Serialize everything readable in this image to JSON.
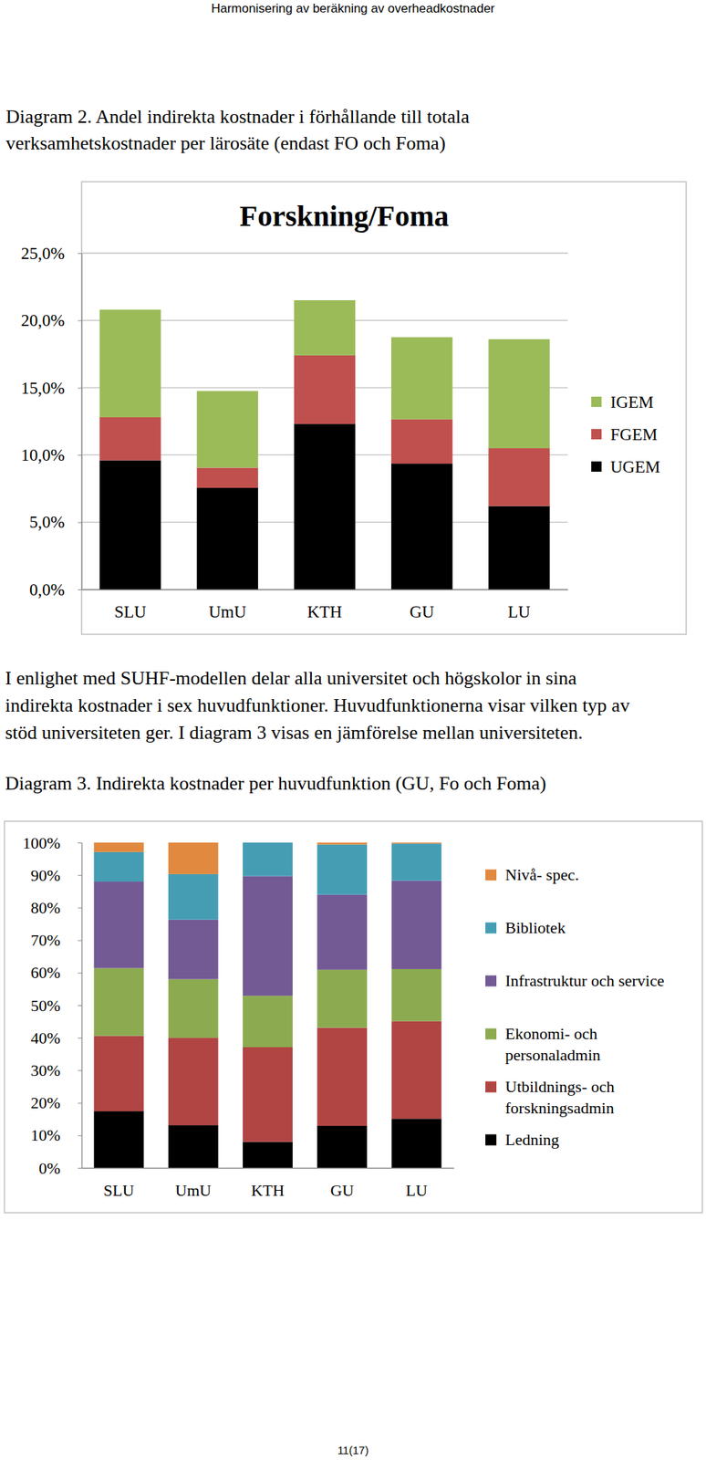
{
  "header": "Harmonisering av beräkning av overheadkostnader",
  "diagram2_caption": [
    "Diagram 2. Andel indirekta kostnader i förhållande till totala",
    "verksamhetskostnader per lärosäte (endast FO och Foma)"
  ],
  "paragraph": [
    "I enlighet med SUHF-modellen delar alla universitet och högskolor in sina",
    "indirekta kostnader i sex huvudfunktioner. Huvudfunktionerna visar vilken typ av",
    "stöd universiteten ger. I diagram 3 visas en jämförelse mellan universiteten."
  ],
  "diagram3_caption": "Diagram 3. Indirekta kostnader per huvudfunktion (GU, Fo och Foma)",
  "page_number": "11(17)",
  "chart_data": [
    {
      "type": "bar",
      "title": "Forskning/Foma",
      "stacked": true,
      "grid": true,
      "legend": "right",
      "categories": [
        "SLU",
        "UmU",
        "KTH",
        "GU",
        "LU"
      ],
      "series": [
        {
          "name": "UGEM",
          "color": "#000000",
          "values": [
            9.6,
            7.55,
            12.3,
            9.35,
            6.2
          ]
        },
        {
          "name": "FGEM",
          "color": "#c0504d",
          "values": [
            3.2,
            1.5,
            5.1,
            3.3,
            4.3
          ]
        },
        {
          "name": "IGEM",
          "color": "#9bbb59",
          "values": [
            8.0,
            5.7,
            4.1,
            6.1,
            8.1
          ]
        }
      ],
      "ylim": [
        0,
        25
      ],
      "yticks": [
        {
          "value": 0,
          "label": "0,0%"
        },
        {
          "value": 5,
          "label": "5,0%"
        },
        {
          "value": 10,
          "label": "10,0%"
        },
        {
          "value": 15,
          "label": "15,0%"
        },
        {
          "value": 20,
          "label": "20,0%"
        },
        {
          "value": 25,
          "label": "25,0%"
        }
      ]
    },
    {
      "type": "bar",
      "stacked": true,
      "grid": false,
      "legend": "right",
      "categories": [
        "SLU",
        "UmU",
        "KTH",
        "GU",
        "LU"
      ],
      "series": [
        {
          "name": "Ledning",
          "color": "#000000",
          "values": [
            17.4,
            13.1,
            8.0,
            12.9,
            15.1
          ]
        },
        {
          "name": "Utbildnings- och forskningsadmin",
          "color": "#b04543",
          "values": [
            23.2,
            26.9,
            29.1,
            30.2,
            30.0
          ]
        },
        {
          "name": "Ekonomi- och personaladmin",
          "color": "#8cab50",
          "values": [
            20.8,
            18.0,
            15.8,
            17.8,
            16.0
          ]
        },
        {
          "name": "Infrastruktur och service",
          "color": "#735a95",
          "values": [
            26.6,
            18.3,
            36.8,
            23.1,
            27.2
          ]
        },
        {
          "name": "Bibliotek",
          "color": "#459db4",
          "values": [
            9.1,
            14.0,
            10.3,
            15.4,
            11.4
          ]
        },
        {
          "name": "Nivå- spec.",
          "color": "#e0893f",
          "values": [
            2.9,
            9.7,
            0,
            0.6,
            0.3
          ]
        }
      ],
      "ylim": [
        0,
        100
      ],
      "yticks": [
        {
          "value": 0,
          "label": "0%"
        },
        {
          "value": 10,
          "label": "10%"
        },
        {
          "value": 20,
          "label": "20%"
        },
        {
          "value": 30,
          "label": "30%"
        },
        {
          "value": 40,
          "label": "40%"
        },
        {
          "value": 50,
          "label": "50%"
        },
        {
          "value": 60,
          "label": "60%"
        },
        {
          "value": 70,
          "label": "70%"
        },
        {
          "value": 80,
          "label": "80%"
        },
        {
          "value": 90,
          "label": "90%"
        },
        {
          "value": 100,
          "label": "100%"
        }
      ]
    }
  ]
}
